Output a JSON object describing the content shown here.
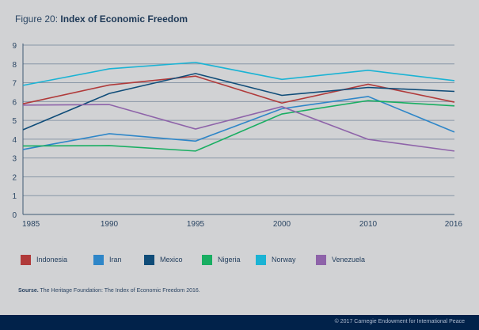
{
  "header": {
    "figure_prefix": "Figure 20: ",
    "title": "Index of Economic Freedom"
  },
  "chart_data": {
    "type": "line",
    "title": "Index of Economic Freedom",
    "xlabel": "",
    "ylabel": "",
    "x": [
      "1985",
      "1990",
      "1995",
      "2000",
      "2010",
      "2016"
    ],
    "ylim": [
      0,
      9
    ],
    "yticks": [
      0,
      1,
      2,
      3,
      4,
      5,
      6,
      7,
      8,
      9
    ],
    "grid": true,
    "legend_position": "bottom",
    "series": [
      {
        "name": "Indonesia",
        "color": "#b03a3a",
        "values": [
          5.88,
          6.88,
          7.35,
          5.92,
          6.92,
          5.97
        ]
      },
      {
        "name": "Iran",
        "color": "#2e86c8",
        "values": [
          3.45,
          4.29,
          3.9,
          5.62,
          6.27,
          4.38
        ]
      },
      {
        "name": "Mexico",
        "color": "#0f4c78",
        "values": [
          4.5,
          6.43,
          7.49,
          6.33,
          6.75,
          6.54
        ]
      },
      {
        "name": "Nigeria",
        "color": "#19ae62",
        "values": [
          3.64,
          3.66,
          3.37,
          5.34,
          6.05,
          5.77
        ]
      },
      {
        "name": "Norway",
        "color": "#1ab3d4",
        "values": [
          6.86,
          7.74,
          8.08,
          7.18,
          7.66,
          7.11
        ]
      },
      {
        "name": "Venezuela",
        "color": "#8e63a9",
        "values": [
          5.81,
          5.84,
          4.54,
          5.73,
          3.99,
          3.37
        ]
      }
    ]
  },
  "source": {
    "label": "Sourse.",
    "text": " The Heritage Foundation: The Index of Economic Freedom 2016."
  },
  "footer": {
    "copyright": "© 2017 Carnegie Endowment for International Peace"
  },
  "colors": {
    "background": "#d1d2d4",
    "footer": "#01224a",
    "gridline": "#8896a6",
    "axis": "#3f5a74"
  }
}
